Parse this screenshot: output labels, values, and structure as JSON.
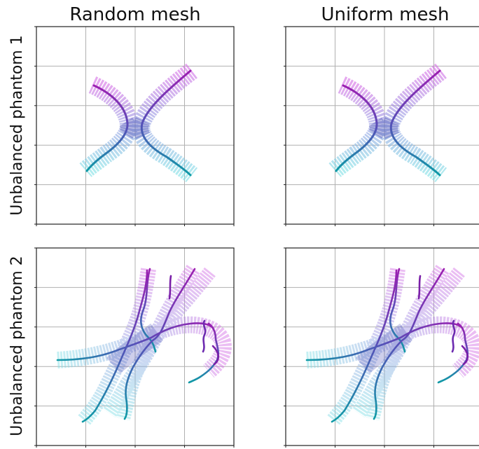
{
  "figure": {
    "column_titles": [
      "Random mesh",
      "Uniform mesh"
    ],
    "row_titles": [
      "Unbalanced phantom 1",
      "Unbalanced phantom 2"
    ],
    "colors": {
      "violet": "#7a1fa8",
      "teal": "#149aa4",
      "mid_blue": "#4a4fb5",
      "ribbon_magenta": "#d77ae8",
      "ribbon_blue": "#9aa6e6",
      "ribbon_cyan": "#8fe0e8",
      "grid": "#b0b0b0",
      "frame": "#222222"
    }
  },
  "chart_data": [
    {
      "type": "other",
      "panel": "Random mesh / Unbalanced phantom 1",
      "grid": true,
      "tick_labels_visible": false
    },
    {
      "type": "other",
      "panel": "Uniform mesh / Unbalanced phantom 1",
      "grid": true,
      "tick_labels_visible": false
    },
    {
      "type": "other",
      "panel": "Random mesh / Unbalanced phantom 2",
      "grid": true,
      "tick_labels_visible": false
    },
    {
      "type": "other",
      "panel": "Uniform mesh / Unbalanced phantom 2",
      "grid": true,
      "tick_labels_visible": false
    }
  ]
}
